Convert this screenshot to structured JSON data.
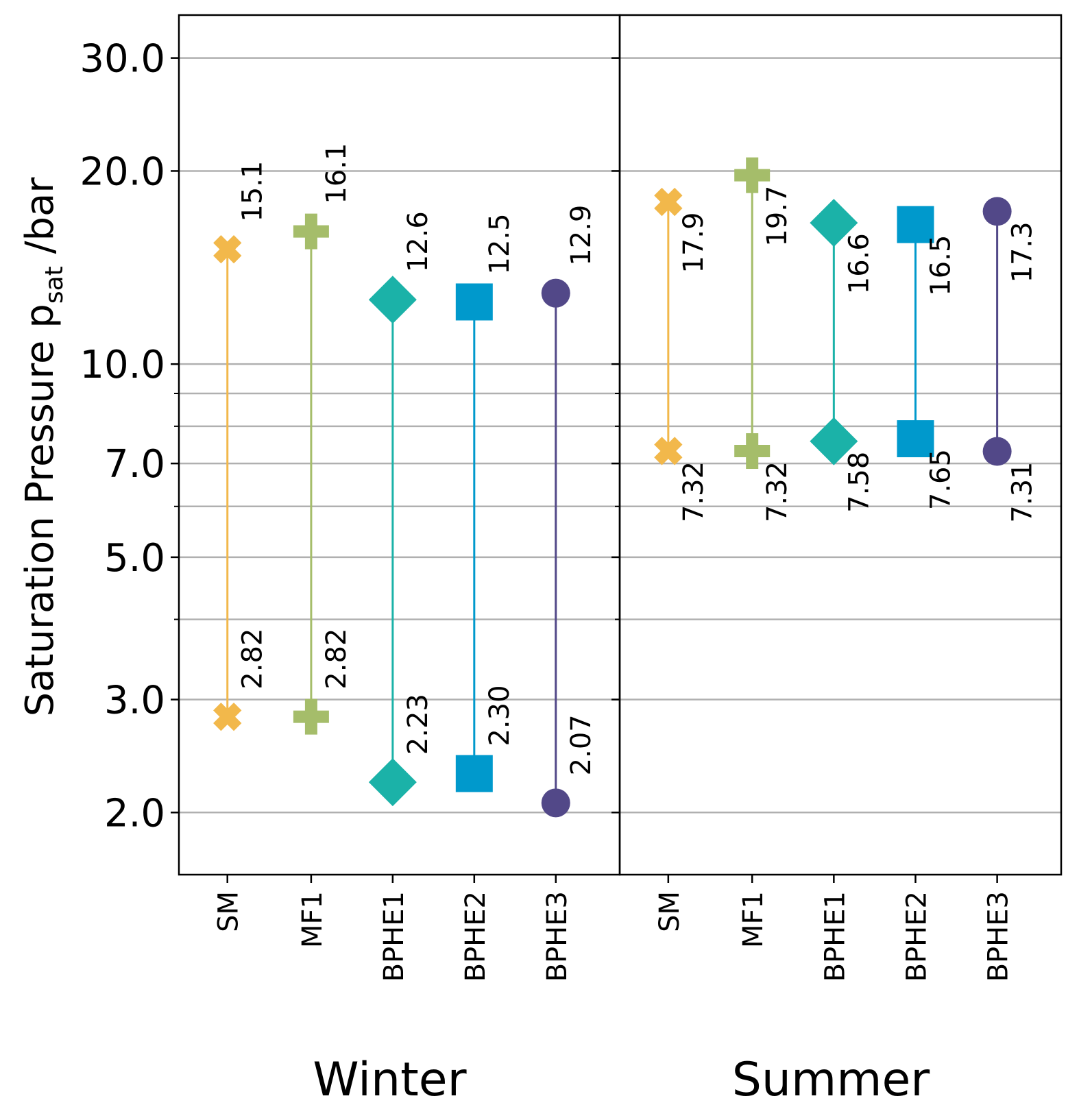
{
  "chart_data": {
    "type": "range_dot",
    "ylabel": "Saturation Pressure p",
    "ylabel_sub": "sat",
    "ylabel_unit": " /bar",
    "yscale": "log",
    "ylim": [
      1.6,
      35.0
    ],
    "yticks": [
      {
        "value": 2.0,
        "label": "2.0"
      },
      {
        "value": 3.0,
        "label": "3.0"
      },
      {
        "value": 5.0,
        "label": "5.0"
      },
      {
        "value": 7.0,
        "label": "7.0"
      },
      {
        "value": 10.0,
        "label": "10.0"
      },
      {
        "value": 20.0,
        "label": "20.0"
      },
      {
        "value": 30.0,
        "label": "30.0"
      }
    ],
    "minor_gridlines": [
      4.0,
      6.0,
      8.0,
      9.0
    ],
    "grid": true,
    "categories": [
      "SM",
      "MF1",
      "BPHE1",
      "BPHE2",
      "BPHE3"
    ],
    "series_styles": [
      {
        "name": "SM",
        "color": "#F2B84B",
        "marker": "x-icon"
      },
      {
        "name": "MF1",
        "color": "#A5BD6A",
        "marker": "plus-icon"
      },
      {
        "name": "BPHE1",
        "color": "#1BB2A8",
        "marker": "diamond-icon"
      },
      {
        "name": "BPHE2",
        "color": "#0099CC",
        "marker": "square-icon"
      },
      {
        "name": "BPHE3",
        "color": "#524888",
        "marker": "circle-icon"
      }
    ],
    "panels": [
      {
        "name": "Winter",
        "low": [
          2.82,
          2.82,
          2.23,
          2.3,
          2.07
        ],
        "high": [
          15.1,
          16.1,
          12.6,
          12.5,
          12.9
        ],
        "low_labels": [
          "2.82",
          "2.82",
          "2.23",
          "2.30",
          "2.07"
        ],
        "high_labels": [
          "15.1",
          "16.1",
          "12.6",
          "12.5",
          "12.9"
        ]
      },
      {
        "name": "Summer",
        "low": [
          7.32,
          7.32,
          7.58,
          7.65,
          7.31
        ],
        "high": [
          17.9,
          19.7,
          16.6,
          16.5,
          17.3
        ],
        "low_labels": [
          "7.32",
          "7.32",
          "7.58",
          "7.65",
          "7.31"
        ],
        "high_labels": [
          "17.9",
          "19.7",
          "16.6",
          "16.5",
          "17.3"
        ]
      }
    ]
  }
}
